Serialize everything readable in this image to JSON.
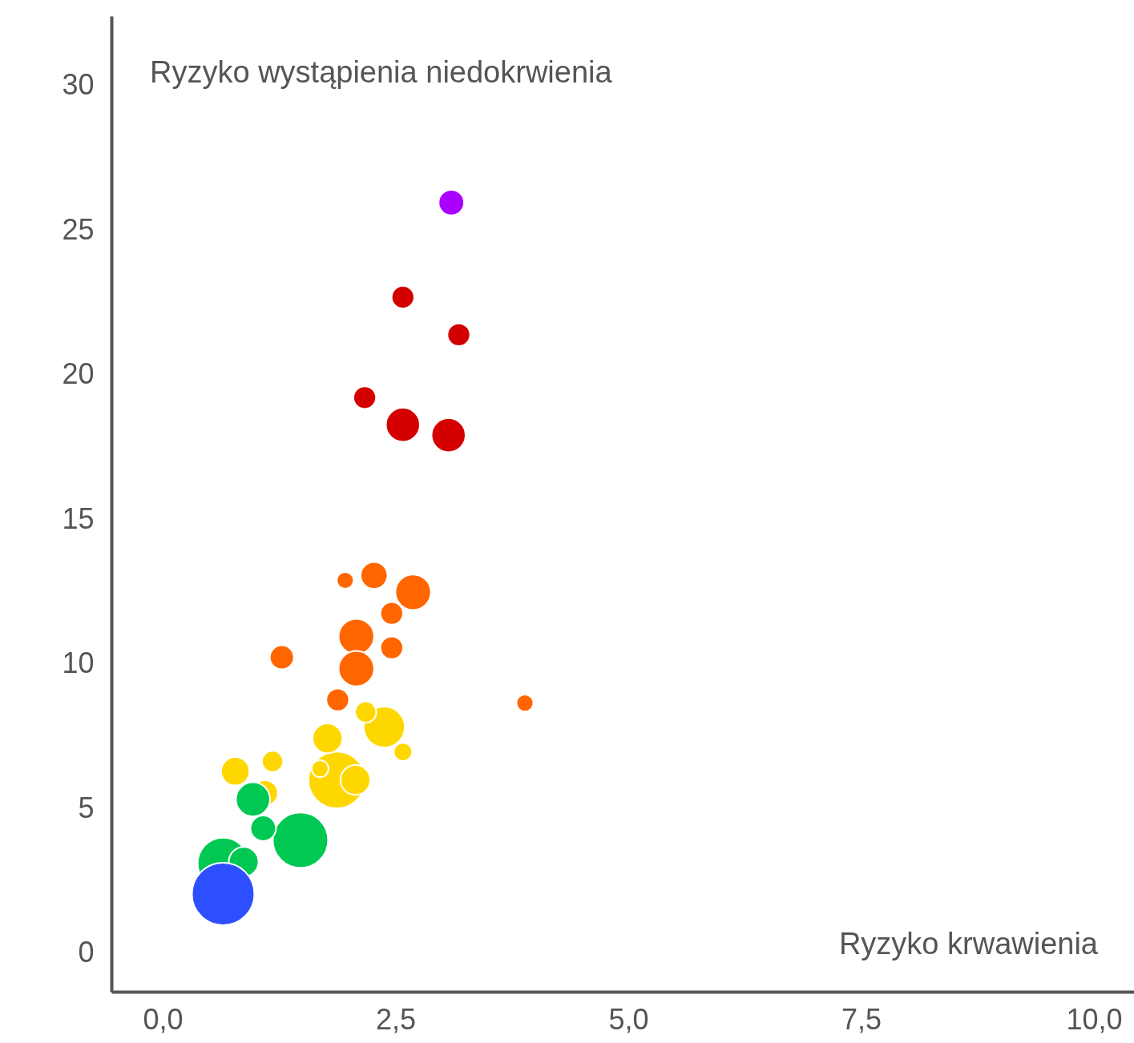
{
  "chart_data": {
    "type": "bubble",
    "xlabel": "Ryzyko krwawienia",
    "ylabel": "Ryzyko wystąpienia niedokrwienia",
    "xlim": [
      -0.55,
      10.43
    ],
    "ylim": [
      -1.33,
      32.4
    ],
    "xticks": [
      {
        "value": 0,
        "label": "0,0"
      },
      {
        "value": 2.5,
        "label": "2,5"
      },
      {
        "value": 5,
        "label": "5,0"
      },
      {
        "value": 7.5,
        "label": "7,5"
      },
      {
        "value": 10,
        "label": "10,0"
      }
    ],
    "yticks": [
      0,
      5,
      10,
      15,
      20,
      25,
      30
    ],
    "grid": false,
    "series": [
      {
        "color": "#aa00ff",
        "x": [
          3.1
        ],
        "values": [
          25.95
        ],
        "sizes": [
          0.167
        ]
      },
      {
        "color": "#d40000",
        "x": [
          2.58,
          3.18,
          2.17,
          2.58,
          3.07
        ],
        "values": [
          22.68,
          21.38,
          19.21,
          18.27,
          17.91
        ],
        "sizes": [
          0.132,
          0.132,
          0.132,
          0.298,
          0.298
        ]
      },
      {
        "color": "#ff6600",
        "x": [
          1.96,
          2.27,
          2.69,
          2.46,
          2.08,
          2.46,
          2.08,
          1.28,
          1.88,
          3.89
        ],
        "values": [
          12.89,
          13.06,
          12.48,
          11.75,
          10.95,
          10.56,
          9.84,
          10.23,
          8.76,
          8.65
        ],
        "sizes": [
          0.074,
          0.186,
          0.323,
          0.132,
          0.323,
          0.132,
          0.323,
          0.149,
          0.132,
          0.074
        ]
      },
      {
        "color": "#ffd700",
        "x": [
          1.87,
          2.38,
          1.77,
          2.58,
          1.18,
          0.78,
          1.1,
          2.18,
          2.07,
          1.69
        ],
        "values": [
          5.99,
          7.82,
          7.43,
          6.96,
          6.63,
          6.29,
          5.54,
          8.34,
          5.99,
          6.38
        ],
        "sizes": [
          0.826,
          0.434,
          0.228,
          0.087,
          0.116,
          0.207,
          0.167,
          0.116,
          0.228,
          0.074
        ]
      },
      {
        "color": "#00c853",
        "x": [
          1.48,
          0.65,
          0.97,
          1.08,
          0.87
        ],
        "values": [
          3.91,
          3.11,
          5.32,
          4.32,
          3.16
        ],
        "sizes": [
          0.786,
          0.669,
          0.298,
          0.167,
          0.228
        ]
      },
      {
        "color": "#2e4fff",
        "x": [
          0.65
        ],
        "values": [
          2.05
        ],
        "sizes": [
          1.0
        ]
      }
    ]
  }
}
